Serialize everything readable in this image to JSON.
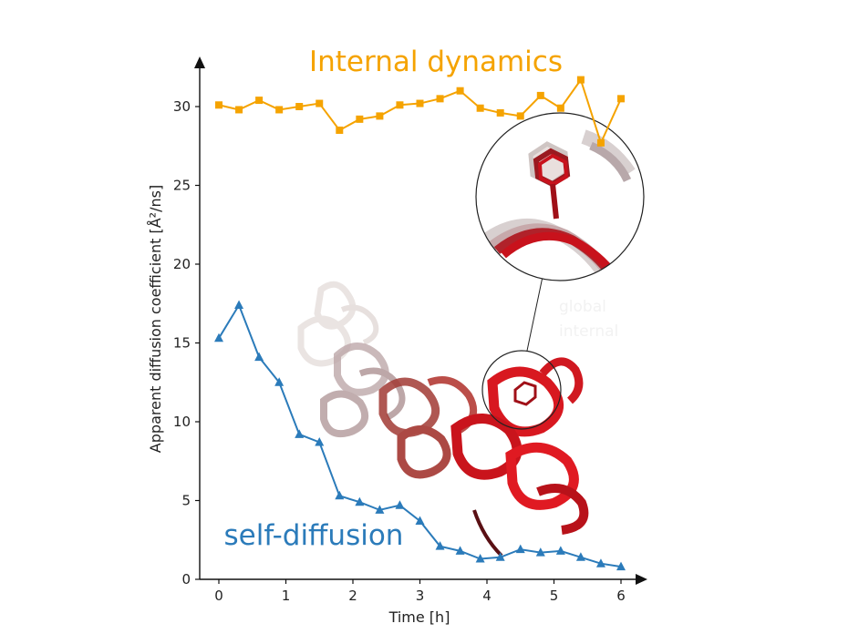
{
  "chart_data": {
    "type": "line",
    "xlabel": "Time [h]",
    "ylabel": "Apparent diffusion coefficient [Å²/ns]",
    "xlim": [
      -0.3,
      6.3
    ],
    "ylim": [
      0,
      33
    ],
    "x_ticks": [
      "0",
      "1",
      "2",
      "3",
      "4",
      "5",
      "6"
    ],
    "y_ticks": [
      "0",
      "5",
      "10",
      "15",
      "20",
      "25",
      "30"
    ],
    "grid": false,
    "series": [
      {
        "name": "Internal dynamics",
        "color": "#f5a300",
        "marker": "square",
        "x": [
          0,
          0.3,
          0.6,
          0.9,
          1.2,
          1.5,
          1.8,
          2.1,
          2.4,
          2.7,
          3.0,
          3.3,
          3.6,
          3.9,
          4.2,
          4.5,
          4.8,
          5.1,
          5.4,
          5.7,
          6.0
        ],
        "y": [
          30.1,
          29.8,
          30.4,
          29.8,
          30.0,
          30.2,
          28.5,
          29.2,
          29.4,
          30.1,
          30.2,
          30.5,
          31.0,
          29.9,
          29.6,
          29.4,
          30.7,
          29.9,
          31.7,
          27.7,
          30.5
        ]
      },
      {
        "name": "self-diffusion",
        "color": "#2b7bba",
        "marker": "triangle",
        "x": [
          0,
          0.3,
          0.6,
          0.9,
          1.2,
          1.5,
          1.8,
          2.1,
          2.4,
          2.7,
          3.0,
          3.3,
          3.6,
          3.9,
          4.2,
          4.5,
          4.8,
          5.1,
          5.4,
          5.7,
          6.0
        ],
        "y": [
          15.3,
          17.4,
          14.1,
          12.5,
          9.2,
          8.7,
          5.3,
          4.9,
          4.4,
          4.7,
          3.7,
          2.1,
          1.8,
          1.3,
          1.4,
          1.9,
          1.7,
          1.8,
          1.4,
          1.0,
          0.8
        ]
      }
    ],
    "faint_legend": [
      "global",
      "internal"
    ]
  }
}
